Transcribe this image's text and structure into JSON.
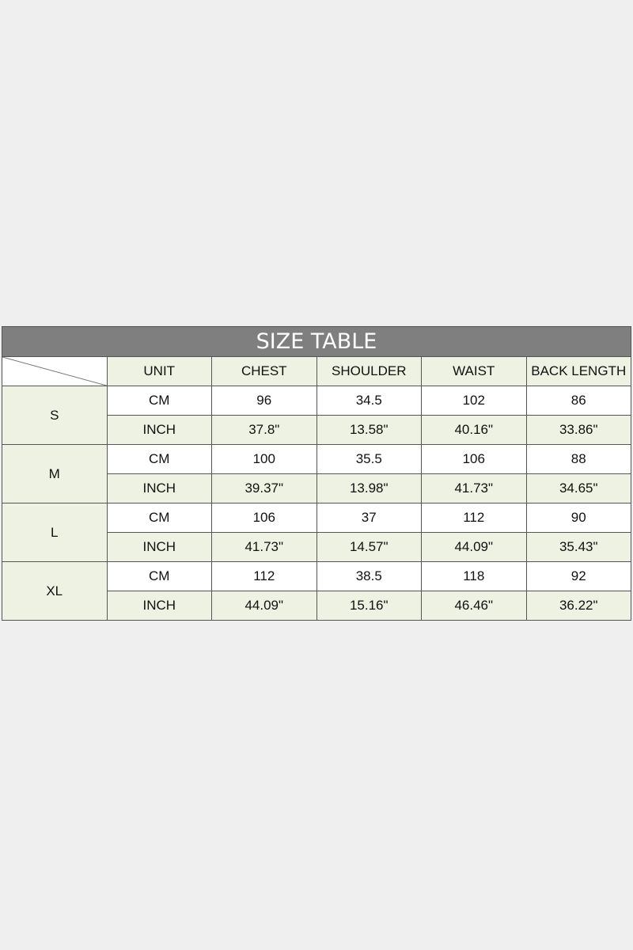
{
  "title": "SIZE TABLE",
  "headers": [
    "UNIT",
    "CHEST",
    "SHOULDER",
    "WAIST",
    "BACK LENGTH"
  ],
  "colors": {
    "title_bg": "#7f7f7f",
    "label_bg": "#eef2e2",
    "value_bg": "#ffffff"
  },
  "sizes": [
    {
      "size": "S",
      "rows": [
        [
          "CM",
          "96",
          "34.5",
          "102",
          "86"
        ],
        [
          "INCH",
          "37.8\"",
          "13.58\"",
          "40.16\"",
          "33.86\""
        ]
      ]
    },
    {
      "size": "M",
      "rows": [
        [
          "CM",
          "100",
          "35.5",
          "106",
          "88"
        ],
        [
          "INCH",
          "39.37\"",
          "13.98\"",
          "41.73\"",
          "34.65\""
        ]
      ]
    },
    {
      "size": "L",
      "rows": [
        [
          "CM",
          "106",
          "37",
          "112",
          "90"
        ],
        [
          "INCH",
          "41.73\"",
          "14.57\"",
          "44.09\"",
          "35.43\""
        ]
      ]
    },
    {
      "size": "XL",
      "rows": [
        [
          "CM",
          "112",
          "38.5",
          "118",
          "92"
        ],
        [
          "INCH",
          "44.09\"",
          "15.16\"",
          "46.46\"",
          "36.22\""
        ]
      ]
    }
  ]
}
